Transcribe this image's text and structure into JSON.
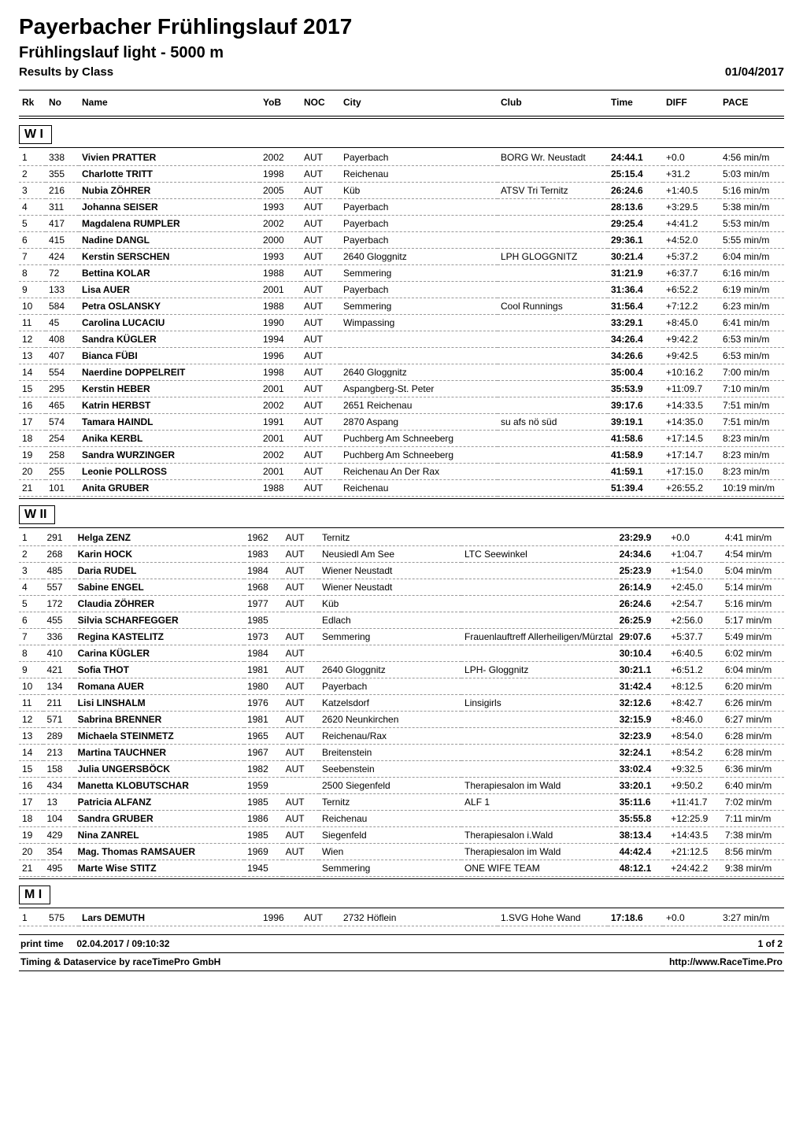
{
  "page": {
    "title": "Payerbacher Frühlingslauf 2017",
    "subtitle": "Frühlingslauf light - 5000 m",
    "results_by_class": "Results by Class",
    "date": "01/04/2017"
  },
  "columns": {
    "rk": "Rk",
    "no": "No",
    "name": "Name",
    "yob": "YoB",
    "noc": "NOC",
    "city": "City",
    "club": "Club",
    "time": "Time",
    "diff": "DIFF",
    "pace": "PACE"
  },
  "groups": [
    {
      "label": "W I",
      "rows": [
        {
          "rk": "1",
          "no": "338",
          "name": "Vivien PRATTER",
          "yob": "2002",
          "noc": "AUT",
          "city": "Payerbach",
          "club": "BORG Wr. Neustadt",
          "time": "24:44.1",
          "diff": "+0.0",
          "pace": "4:56 min/m"
        },
        {
          "rk": "2",
          "no": "355",
          "name": "Charlotte TRITT",
          "yob": "1998",
          "noc": "AUT",
          "city": "Reichenau",
          "club": "",
          "time": "25:15.4",
          "diff": "+31.2",
          "pace": "5:03 min/m"
        },
        {
          "rk": "3",
          "no": "216",
          "name": "Nubia ZÖHRER",
          "yob": "2005",
          "noc": "AUT",
          "city": "Küb",
          "club": "ATSV Tri Ternitz",
          "time": "26:24.6",
          "diff": "+1:40.5",
          "pace": "5:16 min/m"
        },
        {
          "rk": "4",
          "no": "311",
          "name": "Johanna SEISER",
          "yob": "1993",
          "noc": "AUT",
          "city": "Payerbach",
          "club": "",
          "time": "28:13.6",
          "diff": "+3:29.5",
          "pace": "5:38 min/m"
        },
        {
          "rk": "5",
          "no": "417",
          "name": "Magdalena RUMPLER",
          "yob": "2002",
          "noc": "AUT",
          "city": "Payerbach",
          "club": "",
          "time": "29:25.4",
          "diff": "+4:41.2",
          "pace": "5:53 min/m"
        },
        {
          "rk": "6",
          "no": "415",
          "name": "Nadine DANGL",
          "yob": "2000",
          "noc": "AUT",
          "city": "Payerbach",
          "club": "",
          "time": "29:36.1",
          "diff": "+4:52.0",
          "pace": "5:55 min/m"
        },
        {
          "rk": "7",
          "no": "424",
          "name": "Kerstin SERSCHEN",
          "yob": "1993",
          "noc": "AUT",
          "city": "2640 Gloggnitz",
          "club": "LPH GLOGGNITZ",
          "time": "30:21.4",
          "diff": "+5:37.2",
          "pace": "6:04 min/m"
        },
        {
          "rk": "8",
          "no": "72",
          "name": "Bettina KOLAR",
          "yob": "1988",
          "noc": "AUT",
          "city": "Semmering",
          "club": "",
          "time": "31:21.9",
          "diff": "+6:37.7",
          "pace": "6:16 min/m"
        },
        {
          "rk": "9",
          "no": "133",
          "name": "Lisa AUER",
          "yob": "2001",
          "noc": "AUT",
          "city": "Payerbach",
          "club": "",
          "time": "31:36.4",
          "diff": "+6:52.2",
          "pace": "6:19 min/m"
        },
        {
          "rk": "10",
          "no": "584",
          "name": "Petra OSLANSKY",
          "yob": "1988",
          "noc": "AUT",
          "city": "Semmering",
          "club": "Cool Runnings",
          "time": "31:56.4",
          "diff": "+7:12.2",
          "pace": "6:23 min/m"
        },
        {
          "rk": "11",
          "no": "45",
          "name": "Carolina LUCACIU",
          "yob": "1990",
          "noc": "AUT",
          "city": "Wimpassing",
          "club": "",
          "time": "33:29.1",
          "diff": "+8:45.0",
          "pace": "6:41 min/m"
        },
        {
          "rk": "12",
          "no": "408",
          "name": "Sandra KÜGLER",
          "yob": "1994",
          "noc": "AUT",
          "city": "",
          "club": "",
          "time": "34:26.4",
          "diff": "+9:42.2",
          "pace": "6:53 min/m"
        },
        {
          "rk": "13",
          "no": "407",
          "name": "Bianca FÜBI",
          "yob": "1996",
          "noc": "AUT",
          "city": "",
          "club": "",
          "time": "34:26.6",
          "diff": "+9:42.5",
          "pace": "6:53 min/m"
        },
        {
          "rk": "14",
          "no": "554",
          "name": "Naerdine DOPPELREIT",
          "yob": "1998",
          "noc": "AUT",
          "city": "2640 Gloggnitz",
          "club": "",
          "time": "35:00.4",
          "diff": "+10:16.2",
          "pace": "7:00 min/m"
        },
        {
          "rk": "15",
          "no": "295",
          "name": "Kerstin HEBER",
          "yob": "2001",
          "noc": "AUT",
          "city": "Aspangberg-St. Peter",
          "club": "",
          "time": "35:53.9",
          "diff": "+11:09.7",
          "pace": "7:10 min/m"
        },
        {
          "rk": "16",
          "no": "465",
          "name": "Katrin HERBST",
          "yob": "2002",
          "noc": "AUT",
          "city": "2651 Reichenau",
          "club": "",
          "time": "39:17.6",
          "diff": "+14:33.5",
          "pace": "7:51 min/m"
        },
        {
          "rk": "17",
          "no": "574",
          "name": "Tamara HAINDL",
          "yob": "1991",
          "noc": "AUT",
          "city": "2870 Aspang",
          "club": "su afs nö süd",
          "time": "39:19.1",
          "diff": "+14:35.0",
          "pace": "7:51 min/m"
        },
        {
          "rk": "18",
          "no": "254",
          "name": "Anika KERBL",
          "yob": "2001",
          "noc": "AUT",
          "city": "Puchberg Am Schneeberg",
          "club": "",
          "time": "41:58.6",
          "diff": "+17:14.5",
          "pace": "8:23 min/m"
        },
        {
          "rk": "19",
          "no": "258",
          "name": "Sandra WURZINGER",
          "yob": "2002",
          "noc": "AUT",
          "city": "Puchberg Am Schneeberg",
          "club": "",
          "time": "41:58.9",
          "diff": "+17:14.7",
          "pace": "8:23 min/m"
        },
        {
          "rk": "20",
          "no": "255",
          "name": "Leonie POLLROSS",
          "yob": "2001",
          "noc": "AUT",
          "city": "Reichenau An Der Rax",
          "club": "",
          "time": "41:59.1",
          "diff": "+17:15.0",
          "pace": "8:23 min/m"
        },
        {
          "rk": "21",
          "no": "101",
          "name": "Anita GRUBER",
          "yob": "1988",
          "noc": "AUT",
          "city": "Reichenau",
          "club": "",
          "time": "51:39.4",
          "diff": "+26:55.2",
          "pace": "10:19 min/m"
        }
      ]
    },
    {
      "label": "W II",
      "rows": [
        {
          "rk": "1",
          "no": "291",
          "name": "Helga ZENZ",
          "yob": "1962",
          "noc": "AUT",
          "city": "Ternitz",
          "club": "",
          "time": "23:29.9",
          "diff": "+0.0",
          "pace": "4:41 min/m"
        },
        {
          "rk": "2",
          "no": "268",
          "name": "Karin HOCK",
          "yob": "1983",
          "noc": "AUT",
          "city": "Neusiedl Am See",
          "club": "LTC Seewinkel",
          "time": "24:34.6",
          "diff": "+1:04.7",
          "pace": "4:54 min/m"
        },
        {
          "rk": "3",
          "no": "485",
          "name": "Daria RUDEL",
          "yob": "1984",
          "noc": "AUT",
          "city": "Wiener Neustadt",
          "club": "",
          "time": "25:23.9",
          "diff": "+1:54.0",
          "pace": "5:04 min/m"
        },
        {
          "rk": "4",
          "no": "557",
          "name": "Sabine ENGEL",
          "yob": "1968",
          "noc": "AUT",
          "city": "Wiener Neustadt",
          "club": "",
          "time": "26:14.9",
          "diff": "+2:45.0",
          "pace": "5:14 min/m"
        },
        {
          "rk": "5",
          "no": "172",
          "name": "Claudia ZÖHRER",
          "yob": "1977",
          "noc": "AUT",
          "city": "Küb",
          "club": "",
          "time": "26:24.6",
          "diff": "+2:54.7",
          "pace": "5:16 min/m"
        },
        {
          "rk": "6",
          "no": "455",
          "name": "Silvia SCHARFEGGER",
          "yob": "1985",
          "noc": "",
          "city": "Edlach",
          "club": "",
          "time": "26:25.9",
          "diff": "+2:56.0",
          "pace": "5:17 min/m"
        },
        {
          "rk": "7",
          "no": "336",
          "name": "Regina KASTELITZ",
          "yob": "1973",
          "noc": "AUT",
          "city": "Semmering",
          "club": "Frauenlauftreff Allerheiligen/Mürztal",
          "time": "29:07.6",
          "diff": "+5:37.7",
          "pace": "5:49 min/m"
        },
        {
          "rk": "8",
          "no": "410",
          "name": "Carina KÜGLER",
          "yob": "1984",
          "noc": "AUT",
          "city": "",
          "club": "",
          "time": "30:10.4",
          "diff": "+6:40.5",
          "pace": "6:02 min/m"
        },
        {
          "rk": "9",
          "no": "421",
          "name": "Sofia THOT",
          "yob": "1981",
          "noc": "AUT",
          "city": "2640 Gloggnitz",
          "club": "LPH- Gloggnitz",
          "time": "30:21.1",
          "diff": "+6:51.2",
          "pace": "6:04 min/m"
        },
        {
          "rk": "10",
          "no": "134",
          "name": "Romana AUER",
          "yob": "1980",
          "noc": "AUT",
          "city": "Payerbach",
          "club": "",
          "time": "31:42.4",
          "diff": "+8:12.5",
          "pace": "6:20 min/m"
        },
        {
          "rk": "11",
          "no": "211",
          "name": "Lisi LINSHALM",
          "yob": "1976",
          "noc": "AUT",
          "city": "Katzelsdorf",
          "club": "Linsigirls",
          "time": "32:12.6",
          "diff": "+8:42.7",
          "pace": "6:26 min/m"
        },
        {
          "rk": "12",
          "no": "571",
          "name": "Sabrina BRENNER",
          "yob": "1981",
          "noc": "AUT",
          "city": "2620 Neunkirchen",
          "club": "",
          "time": "32:15.9",
          "diff": "+8:46.0",
          "pace": "6:27 min/m"
        },
        {
          "rk": "13",
          "no": "289",
          "name": "Michaela STEINMETZ",
          "yob": "1965",
          "noc": "AUT",
          "city": "Reichenau/Rax",
          "club": "",
          "time": "32:23.9",
          "diff": "+8:54.0",
          "pace": "6:28 min/m"
        },
        {
          "rk": "14",
          "no": "213",
          "name": "Martina TAUCHNER",
          "yob": "1967",
          "noc": "AUT",
          "city": "Breitenstein",
          "club": "",
          "time": "32:24.1",
          "diff": "+8:54.2",
          "pace": "6:28 min/m"
        },
        {
          "rk": "15",
          "no": "158",
          "name": "Julia UNGERSBÖCK",
          "yob": "1982",
          "noc": "AUT",
          "city": "Seebenstein",
          "club": "",
          "time": "33:02.4",
          "diff": "+9:32.5",
          "pace": "6:36 min/m"
        },
        {
          "rk": "16",
          "no": "434",
          "name": "Manetta KLOBUTSCHAR",
          "yob": "1959",
          "noc": "",
          "city": "2500 Siegenfeld",
          "club": "Therapiesalon im Wald",
          "time": "33:20.1",
          "diff": "+9:50.2",
          "pace": "6:40 min/m"
        },
        {
          "rk": "17",
          "no": "13",
          "name": "Patricia ALFANZ",
          "yob": "1985",
          "noc": "AUT",
          "city": "Ternitz",
          "club": "ALF 1",
          "time": "35:11.6",
          "diff": "+11:41.7",
          "pace": "7:02 min/m"
        },
        {
          "rk": "18",
          "no": "104",
          "name": "Sandra GRUBER",
          "yob": "1986",
          "noc": "AUT",
          "city": "Reichenau",
          "club": "",
          "time": "35:55.8",
          "diff": "+12:25.9",
          "pace": "7:11 min/m"
        },
        {
          "rk": "19",
          "no": "429",
          "name": "Nina ZANREL",
          "yob": "1985",
          "noc": "AUT",
          "city": "Siegenfeld",
          "club": "Therapiesalon i.Wald",
          "time": "38:13.4",
          "diff": "+14:43.5",
          "pace": "7:38 min/m"
        },
        {
          "rk": "20",
          "no": "354",
          "name": "Mag. Thomas RAMSAUER",
          "yob": "1969",
          "noc": "AUT",
          "city": "Wien",
          "club": "Therapiesalon im Wald",
          "time": "44:42.4",
          "diff": "+21:12.5",
          "pace": "8:56 min/m"
        },
        {
          "rk": "21",
          "no": "495",
          "name": "Marte Wise STITZ",
          "yob": "1945",
          "noc": "",
          "city": "Semmering",
          "club": "ONE WIFE TEAM",
          "time": "48:12.1",
          "diff": "+24:42.2",
          "pace": "9:38 min/m"
        }
      ]
    },
    {
      "label": "M I",
      "rows": [
        {
          "rk": "1",
          "no": "575",
          "name": "Lars DEMUTH",
          "yob": "1996",
          "noc": "AUT",
          "city": "2732 Höflein",
          "club": "1.SVG Hohe Wand",
          "time": "17:18.6",
          "diff": "+0.0",
          "pace": "3:27 min/m"
        }
      ]
    }
  ],
  "footer": {
    "print_time_label": "print time",
    "print_time_value": "02.04.2017 / 09:10:32",
    "page_label": "1   of   2",
    "timing": "Timing & Dataservice by raceTimePro GmbH",
    "url": "http://www.RaceTime.Pro"
  }
}
